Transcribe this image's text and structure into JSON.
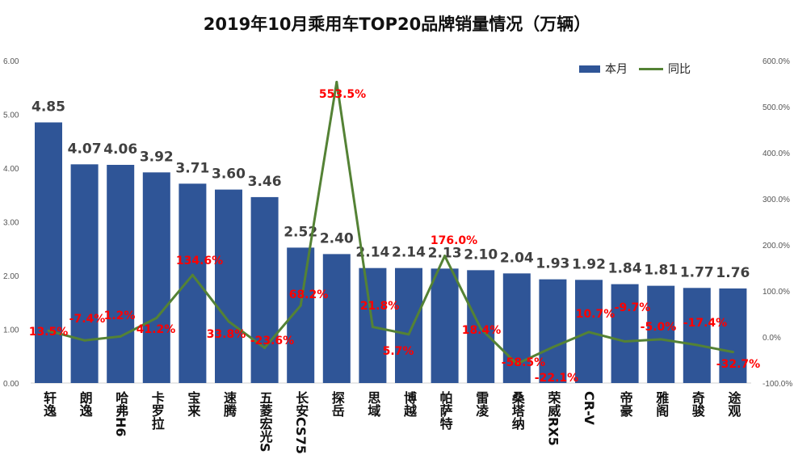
{
  "chart_data": {
    "type": "bar+line",
    "title": "2019年10月乘用车TOP20品牌销量情况（万辆）",
    "categories": [
      "轩逸",
      "朗逸",
      "哈弗H6",
      "卡罗拉",
      "宝来",
      "速腾",
      "五菱宏光S",
      "长安CS75",
      "探岳",
      "思域",
      "博越",
      "帕萨特",
      "雷凌",
      "桑塔纳",
      "荣威RX5",
      "CR-V",
      "帝豪",
      "雅阁",
      "奇骏",
      "途观"
    ],
    "series": [
      {
        "name": "本月",
        "type": "bar",
        "axis": "left",
        "color": "#2F5597",
        "values": [
          4.85,
          4.07,
          4.06,
          3.92,
          3.71,
          3.6,
          3.46,
          2.52,
          2.4,
          2.14,
          2.14,
          2.13,
          2.1,
          2.04,
          1.93,
          1.92,
          1.84,
          1.81,
          1.77,
          1.76
        ]
      },
      {
        "name": "同比",
        "type": "line",
        "axis": "right",
        "color": "#548235",
        "values": [
          13.5,
          -7.4,
          1.2,
          41.2,
          134.6,
          33.8,
          -23.6,
          68.2,
          553.5,
          21.8,
          5.7,
          176.0,
          18.4,
          -58.5,
          -22.1,
          10.7,
          -9.7,
          -5.0,
          -17.4,
          -32.7
        ]
      }
    ],
    "left_axis": {
      "ticks": [
        "0.00",
        "1.00",
        "2.00",
        "3.00",
        "4.00",
        "5.00",
        "6.00"
      ],
      "range": [
        0,
        6
      ]
    },
    "right_axis": {
      "ticks": [
        "-100.0%",
        "0.0%",
        "100.0%",
        "200.0%",
        "300.0%",
        "400.0%",
        "500.0%",
        "600.0%"
      ],
      "range": [
        -100,
        600
      ]
    },
    "value_labels": [
      "4.85",
      "4.07",
      "4.06",
      "3.92",
      "3.71",
      "3.60",
      "3.46",
      "2.52",
      "2.40",
      "2.14",
      "2.14",
      "2.13",
      "2.10",
      "2.04",
      "1.93",
      "1.92",
      "1.84",
      "1.81",
      "1.77",
      "1.76"
    ],
    "pct_labels": [
      "13.5%",
      "-7.4%",
      "1.2%",
      "41.2%",
      "134.6%",
      "33.8%",
      "-23.6%",
      "68.2%",
      "553.5%",
      "21.8%",
      "5.7%",
      "176.0%",
      "18.4%",
      "-58.5%",
      "-22.1%",
      "10.7%",
      "-9.7%",
      "-5.0%",
      "-17.4%",
      "-32.7%"
    ],
    "legend": [
      "本月",
      "同比"
    ],
    "legend_position": "top-right",
    "grid": false
  }
}
